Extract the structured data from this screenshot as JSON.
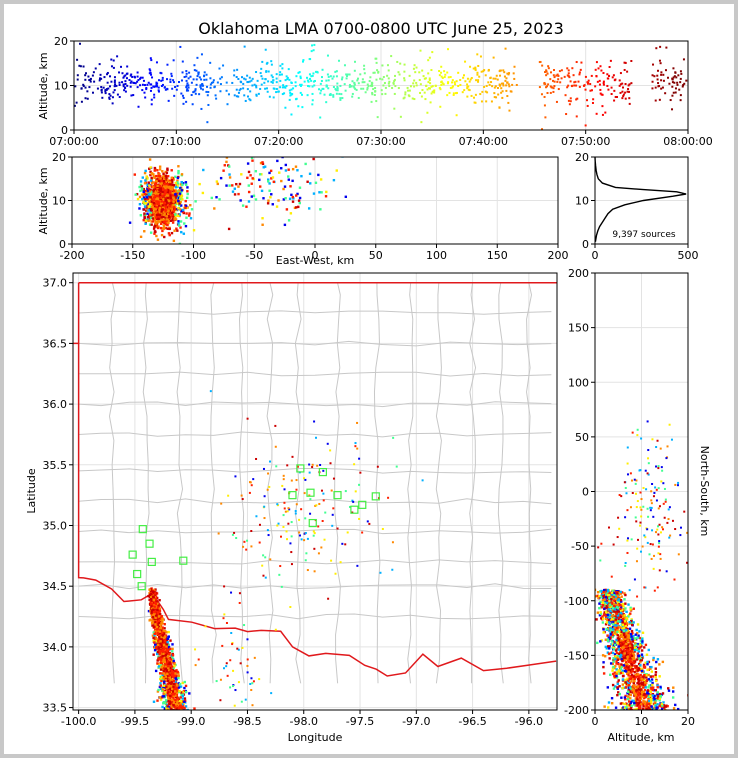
{
  "title": "Oklahoma LMA 0700-0800 UTC June 25, 2023",
  "chart_data": [
    {
      "id": "time-height",
      "type": "scatter",
      "ylabel": "Altitude, km",
      "xlim": [
        "07:00:00",
        "08:00:00"
      ],
      "ylim": [
        0,
        20
      ],
      "xticks": [
        "07:00:00",
        "07:10:00",
        "07:20:00",
        "07:30:00",
        "07:40:00",
        "07:50:00",
        "08:00:00"
      ],
      "yticks": [
        "0",
        "10",
        "20"
      ],
      "color_encoding": "time (blue to red)",
      "data_note": "points clustered around 10-12 km altitude throughout the hour",
      "clusters": [
        {
          "t0": "07:00:00",
          "t1": "07:43:30",
          "alt_mean": 10.5,
          "alt_sd": 2.6
        },
        {
          "t0": "07:45:30",
          "t1": "07:54:30",
          "alt_mean": 10.5,
          "alt_sd": 2.8
        },
        {
          "t0": "07:56:30",
          "t1": "07:59:50",
          "alt_mean": 10.5,
          "alt_sd": 3.0
        }
      ],
      "grid": true
    },
    {
      "id": "east-west-altitude",
      "type": "scatter",
      "xlabel": "East-West, km",
      "ylabel": "Altitude, km",
      "xlim": [
        -200,
        200
      ],
      "ylim": [
        0,
        20
      ],
      "xticks": [
        "-200",
        "-150",
        "-100",
        "-50",
        "0",
        "50",
        "100",
        "150",
        "200"
      ],
      "yticks": [
        "0",
        "10",
        "20"
      ],
      "clusters": [
        {
          "x_mean": -125,
          "x_sd": 8,
          "alt_mean": 10,
          "alt_sd": 3,
          "weight": 0.9
        },
        {
          "x_mean": -40,
          "x_sd": 25,
          "alt_mean": 14,
          "alt_sd": 4.5,
          "weight": 0.1
        }
      ],
      "grid": true
    },
    {
      "id": "altitude-histogram",
      "type": "line",
      "xlim": [
        0,
        500
      ],
      "ylim": [
        0,
        20
      ],
      "xticks": [
        "0",
        "500"
      ],
      "yticks": [
        "0",
        "10",
        "20"
      ],
      "annotation": "9,397 sources",
      "profile": [
        {
          "alt": 0.5,
          "count": 2
        },
        {
          "alt": 2,
          "count": 8
        },
        {
          "alt": 3,
          "count": 15
        },
        {
          "alt": 4,
          "count": 25
        },
        {
          "alt": 5,
          "count": 40
        },
        {
          "alt": 6,
          "count": 55
        },
        {
          "alt": 7,
          "count": 70
        },
        {
          "alt": 8,
          "count": 95
        },
        {
          "alt": 9,
          "count": 160
        },
        {
          "alt": 10,
          "count": 260
        },
        {
          "alt": 11,
          "count": 420
        },
        {
          "alt": 11.5,
          "count": 490
        },
        {
          "alt": 12,
          "count": 440
        },
        {
          "alt": 12.5,
          "count": 260
        },
        {
          "alt": 13,
          "count": 110
        },
        {
          "alt": 14,
          "count": 40
        },
        {
          "alt": 15,
          "count": 18
        },
        {
          "alt": 16,
          "count": 10
        },
        {
          "alt": 17,
          "count": 6
        },
        {
          "alt": 18,
          "count": 3
        },
        {
          "alt": 19,
          "count": 1
        },
        {
          "alt": 20,
          "count": 0
        }
      ]
    },
    {
      "id": "plan-view-map",
      "type": "scatter",
      "xlabel": "Longitude",
      "ylabel": "Latitude",
      "xlim": [
        -100.05,
        -95.75
      ],
      "ylim": [
        33.48,
        37.08
      ],
      "xticks": [
        "-100.0",
        "-99.5",
        "-99.0",
        "-98.5",
        "-98.0",
        "-97.5",
        "-97.0",
        "-96.5",
        "-96.0"
      ],
      "yticks": [
        "33.5",
        "34.0",
        "34.5",
        "35.0",
        "35.5",
        "36.0",
        "36.5",
        "37.0"
      ],
      "state_border_color": "#e0191c",
      "county_line_color": "#c8c8c8",
      "station_color": "#44ee44",
      "stations": [
        {
          "lon": -99.43,
          "lat": 34.97
        },
        {
          "lon": -99.37,
          "lat": 34.85
        },
        {
          "lon": -99.52,
          "lat": 34.76
        },
        {
          "lon": -99.35,
          "lat": 34.7
        },
        {
          "lon": -99.48,
          "lat": 34.6
        },
        {
          "lon": -99.44,
          "lat": 34.5
        },
        {
          "lon": -99.07,
          "lat": 34.71
        },
        {
          "lon": -98.03,
          "lat": 35.47
        },
        {
          "lon": -97.83,
          "lat": 35.44
        },
        {
          "lon": -98.1,
          "lat": 35.25
        },
        {
          "lon": -97.94,
          "lat": 35.27
        },
        {
          "lon": -97.7,
          "lat": 35.25
        },
        {
          "lon": -97.36,
          "lat": 35.24
        },
        {
          "lon": -97.92,
          "lat": 35.02
        },
        {
          "lon": -97.48,
          "lat": 35.17
        },
        {
          "lon": -97.55,
          "lat": 35.13
        }
      ],
      "grid": true
    },
    {
      "id": "altitude-north-south",
      "type": "scatter",
      "xlabel": "Altitude, km",
      "ylabel": "North-South, km",
      "xlim": [
        0,
        20
      ],
      "ylim": [
        -200,
        200
      ],
      "xticks": [
        "0",
        "10",
        "20"
      ],
      "yticks": [
        "-200",
        "-150",
        "-100",
        "-50",
        "0",
        "50",
        "100",
        "150",
        "200"
      ],
      "grid": true
    }
  ]
}
